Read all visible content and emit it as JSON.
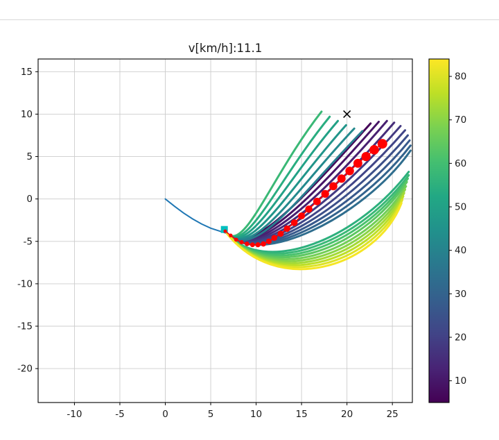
{
  "title": "v[km/h]:11.1",
  "chart_data": {
    "type": "line",
    "title": "v[km/h]:11.1",
    "xlabel": "",
    "ylabel": "",
    "xlim": [
      -14,
      27.2
    ],
    "ylim": [
      -24,
      16.5
    ],
    "xticks": [
      -10,
      -5,
      0,
      5,
      10,
      15,
      20,
      25
    ],
    "yticks": [
      -20,
      -15,
      -10,
      -5,
      0,
      5,
      10,
      15
    ],
    "grid": true,
    "grid_color": "#cccccc",
    "axis_color": "#000000",
    "tick_label_color": "#1a1a1a",
    "colorbar": {
      "min": 5,
      "max": 84,
      "ticks": [
        10,
        20,
        30,
        40,
        50,
        60,
        70,
        80
      ],
      "colormap": "viridis"
    },
    "viridis_stops": [
      {
        "t": 0.0,
        "c": "#440154"
      },
      {
        "t": 0.1,
        "c": "#482475"
      },
      {
        "t": 0.2,
        "c": "#414487"
      },
      {
        "t": 0.3,
        "c": "#355f8d"
      },
      {
        "t": 0.4,
        "c": "#2a788e"
      },
      {
        "t": 0.5,
        "c": "#21918c"
      },
      {
        "t": 0.6,
        "c": "#22a884"
      },
      {
        "t": 0.7,
        "c": "#44bf70"
      },
      {
        "t": 0.8,
        "c": "#7ad151"
      },
      {
        "t": 0.9,
        "c": "#bddf26"
      },
      {
        "t": 1.0,
        "c": "#fde725"
      }
    ],
    "history_path": {
      "color": "#1f77b4",
      "width": 2,
      "points": [
        [
          0,
          0
        ],
        [
          1,
          -0.85
        ],
        [
          2,
          -1.65
        ],
        [
          3,
          -2.35
        ],
        [
          4,
          -2.95
        ],
        [
          5,
          -3.45
        ],
        [
          6,
          -3.8
        ],
        [
          6.6,
          -4.0
        ]
      ]
    },
    "trajectories": [
      {
        "v": 6,
        "b": [
          [
            6.6,
            -3.8
          ],
          [
            9.0,
            -7.6
          ],
          [
            15.5,
            0.5
          ],
          [
            22.6,
            8.9
          ]
        ]
      },
      {
        "v": 9,
        "b": [
          [
            6.6,
            -3.8
          ],
          [
            9.1,
            -7.7
          ],
          [
            16.2,
            0.2
          ],
          [
            23.5,
            9.1
          ]
        ]
      },
      {
        "v": 12,
        "b": [
          [
            6.6,
            -3.8
          ],
          [
            9.2,
            -7.8
          ],
          [
            16.9,
            -0.1
          ],
          [
            24.4,
            9.2
          ]
        ]
      },
      {
        "v": 15,
        "b": [
          [
            6.6,
            -3.8
          ],
          [
            9.3,
            -7.9
          ],
          [
            17.6,
            -0.4
          ],
          [
            25.2,
            9.0
          ]
        ]
      },
      {
        "v": 18,
        "b": [
          [
            6.6,
            -3.8
          ],
          [
            9.4,
            -8.0
          ],
          [
            18.3,
            -0.7
          ],
          [
            25.9,
            8.6
          ]
        ]
      },
      {
        "v": 21,
        "b": [
          [
            6.6,
            -3.8
          ],
          [
            9.5,
            -8.1
          ],
          [
            19.0,
            -1.0
          ],
          [
            26.4,
            8.1
          ]
        ]
      },
      {
        "v": 24,
        "b": [
          [
            6.6,
            -3.8
          ],
          [
            9.6,
            -8.2
          ],
          [
            19.7,
            -1.3
          ],
          [
            26.7,
            7.5
          ]
        ]
      },
      {
        "v": 27,
        "b": [
          [
            6.6,
            -3.8
          ],
          [
            9.7,
            -8.3
          ],
          [
            20.4,
            -1.6
          ],
          [
            26.9,
            6.9
          ]
        ]
      },
      {
        "v": 30,
        "b": [
          [
            6.6,
            -3.8
          ],
          [
            9.8,
            -8.4
          ],
          [
            21.1,
            -1.9
          ],
          [
            27.0,
            6.3
          ]
        ]
      },
      {
        "v": 33,
        "b": [
          [
            6.6,
            -3.8
          ],
          [
            9.9,
            -8.5
          ],
          [
            21.8,
            -2.2
          ],
          [
            27.0,
            5.7
          ]
        ]
      },
      {
        "v": 58,
        "b": [
          [
            6.6,
            -3.8
          ],
          [
            8.6,
            -6.8
          ],
          [
            11.5,
            2.5
          ],
          [
            17.2,
            10.3
          ]
        ]
      },
      {
        "v": 54,
        "b": [
          [
            6.6,
            -3.8
          ],
          [
            8.8,
            -7.0
          ],
          [
            12.2,
            2.0
          ],
          [
            18.1,
            9.7
          ]
        ]
      },
      {
        "v": 50,
        "b": [
          [
            6.6,
            -3.8
          ],
          [
            9.0,
            -7.2
          ],
          [
            12.8,
            1.5
          ],
          [
            19.0,
            9.2
          ]
        ]
      },
      {
        "v": 46,
        "b": [
          [
            6.6,
            -3.8
          ],
          [
            9.2,
            -7.4
          ],
          [
            13.4,
            1.0
          ],
          [
            19.9,
            8.7
          ]
        ]
      },
      {
        "v": 42,
        "b": [
          [
            6.6,
            -3.8
          ],
          [
            9.4,
            -7.6
          ],
          [
            14.0,
            0.6
          ],
          [
            20.8,
            8.3
          ]
        ]
      },
      {
        "v": 38,
        "b": [
          [
            6.6,
            -3.8
          ],
          [
            9.6,
            -7.8
          ],
          [
            14.6,
            0.2
          ],
          [
            21.7,
            8.0
          ]
        ]
      },
      {
        "v": 55,
        "b": [
          [
            6.6,
            -3.8
          ],
          [
            10.3,
            -9.0
          ],
          [
            20.5,
            -5.5
          ],
          [
            26.8,
            3.2
          ]
        ]
      },
      {
        "v": 58,
        "b": [
          [
            6.6,
            -3.8
          ],
          [
            10.5,
            -9.3
          ],
          [
            20.8,
            -5.8
          ],
          [
            26.8,
            2.8
          ]
        ]
      },
      {
        "v": 61,
        "b": [
          [
            6.6,
            -3.8
          ],
          [
            10.7,
            -9.6
          ],
          [
            21.1,
            -6.1
          ],
          [
            26.7,
            2.4
          ]
        ]
      },
      {
        "v": 64,
        "b": [
          [
            6.6,
            -3.8
          ],
          [
            10.9,
            -9.9
          ],
          [
            21.4,
            -6.4
          ],
          [
            26.6,
            2.0
          ]
        ]
      },
      {
        "v": 67,
        "b": [
          [
            6.6,
            -3.8
          ],
          [
            11.1,
            -10.2
          ],
          [
            21.7,
            -6.7
          ],
          [
            26.5,
            1.5
          ]
        ]
      },
      {
        "v": 70,
        "b": [
          [
            6.6,
            -3.8
          ],
          [
            11.3,
            -10.5
          ],
          [
            22.0,
            -7.0
          ],
          [
            26.4,
            1.1
          ]
        ]
      },
      {
        "v": 73,
        "b": [
          [
            6.6,
            -3.8
          ],
          [
            11.5,
            -10.8
          ],
          [
            22.3,
            -7.3
          ],
          [
            26.3,
            0.7
          ]
        ]
      },
      {
        "v": 76,
        "b": [
          [
            6.6,
            -3.8
          ],
          [
            11.7,
            -11.1
          ],
          [
            22.6,
            -7.6
          ],
          [
            26.2,
            0.3
          ]
        ]
      },
      {
        "v": 80,
        "b": [
          [
            6.6,
            -3.8
          ],
          [
            11.9,
            -11.4
          ],
          [
            22.9,
            -7.9
          ],
          [
            26.1,
            -0.1
          ]
        ]
      },
      {
        "v": 83,
        "b": [
          [
            6.6,
            -3.8
          ],
          [
            12.1,
            -11.7
          ],
          [
            23.2,
            -8.2
          ],
          [
            26.0,
            -0.5
          ]
        ]
      }
    ],
    "best_path": {
      "color": "#ff0000",
      "points": [
        [
          6.6,
          -3.8
        ],
        [
          7.2,
          -4.3
        ],
        [
          7.8,
          -4.8
        ],
        [
          8.4,
          -5.1
        ],
        [
          9.0,
          -5.3
        ],
        [
          9.6,
          -5.4
        ],
        [
          10.2,
          -5.4
        ],
        [
          10.8,
          -5.3
        ],
        [
          11.4,
          -5.0
        ],
        [
          12.0,
          -4.6
        ],
        [
          12.7,
          -4.1
        ],
        [
          13.4,
          -3.5
        ],
        [
          14.2,
          -2.8
        ],
        [
          15.0,
          -2.0
        ],
        [
          15.8,
          -1.2
        ],
        [
          16.7,
          -0.3
        ],
        [
          17.6,
          0.6
        ],
        [
          18.5,
          1.5
        ],
        [
          19.4,
          2.4
        ],
        [
          20.3,
          3.3
        ],
        [
          21.2,
          4.2
        ],
        [
          22.1,
          5.0
        ],
        [
          23.0,
          5.8
        ],
        [
          23.9,
          6.5
        ]
      ],
      "marker_min_radius": 2.5,
      "marker_max_radius": 7.0
    },
    "goal_marker": {
      "x": 20,
      "y": 10,
      "symbol": "x",
      "color": "#000000"
    },
    "ego_marker": {
      "x": 6.5,
      "y": -3.6,
      "symbol": "square",
      "color": "#00bfbf"
    }
  }
}
